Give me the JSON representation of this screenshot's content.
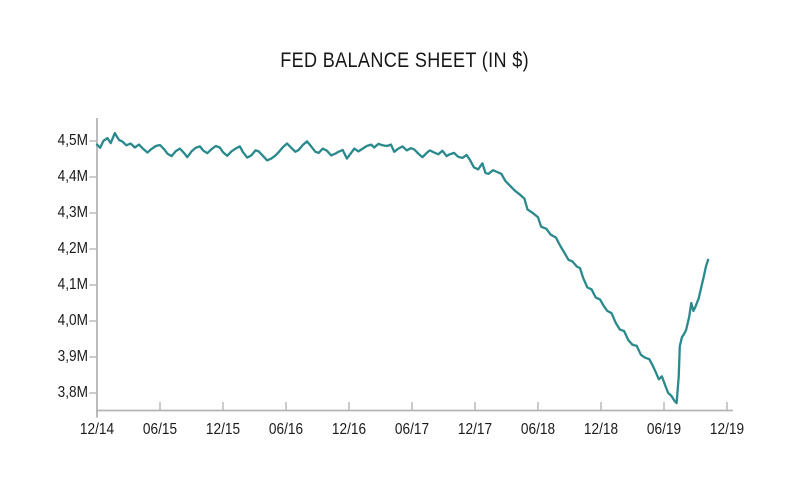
{
  "chart_data": {
    "type": "line",
    "title": "FED BALANCE SHEET (IN $)",
    "xlabel": "",
    "ylabel": "",
    "grid": false,
    "legend": false,
    "axis_color": "#b5b5b5",
    "text_color": "#1a1a1a",
    "xlim_months": [
      0,
      60.6
    ],
    "ylim": [
      3.75,
      4.56
    ],
    "x_ticks": [
      {
        "m": 0,
        "label": "12/14"
      },
      {
        "m": 6,
        "label": "06/15"
      },
      {
        "m": 12,
        "label": "12/15"
      },
      {
        "m": 18,
        "label": "06/16"
      },
      {
        "m": 24,
        "label": "12/16"
      },
      {
        "m": 30,
        "label": "06/17"
      },
      {
        "m": 36,
        "label": "12/17"
      },
      {
        "m": 42,
        "label": "06/18"
      },
      {
        "m": 48,
        "label": "12/18"
      },
      {
        "m": 54,
        "label": "06/19"
      },
      {
        "m": 60,
        "label": "12/19"
      }
    ],
    "y_ticks": [
      {
        "v": 4.5,
        "label": "4,5M"
      },
      {
        "v": 4.4,
        "label": "4,4M"
      },
      {
        "v": 4.3,
        "label": "4,3M"
      },
      {
        "v": 4.2,
        "label": "4,2M"
      },
      {
        "v": 4.1,
        "label": "4,1M"
      },
      {
        "v": 4.0,
        "label": "4,0M"
      },
      {
        "v": 3.9,
        "label": "3,9M"
      },
      {
        "v": 3.8,
        "label": "3,8M"
      }
    ],
    "series": [
      {
        "name": "Fed balance sheet",
        "color": "#2a898c",
        "points": [
          [
            0,
            4.49
          ],
          [
            0.3,
            4.481
          ],
          [
            0.6,
            4.5
          ],
          [
            1.0,
            4.508
          ],
          [
            1.3,
            4.494
          ],
          [
            1.7,
            4.522
          ],
          [
            2.1,
            4.503
          ],
          [
            2.4,
            4.499
          ],
          [
            2.8,
            4.488
          ],
          [
            3.2,
            4.493
          ],
          [
            3.6,
            4.482
          ],
          [
            4.0,
            4.49
          ],
          [
            4.4,
            4.478
          ],
          [
            4.8,
            4.468
          ],
          [
            5.2,
            4.478
          ],
          [
            5.6,
            4.486
          ],
          [
            6.0,
            4.489
          ],
          [
            6.4,
            4.477
          ],
          [
            6.7,
            4.465
          ],
          [
            7.1,
            4.458
          ],
          [
            7.5,
            4.472
          ],
          [
            7.9,
            4.479
          ],
          [
            8.3,
            4.466
          ],
          [
            8.6,
            4.455
          ],
          [
            9.0,
            4.471
          ],
          [
            9.4,
            4.481
          ],
          [
            9.8,
            4.485
          ],
          [
            10.1,
            4.474
          ],
          [
            10.5,
            4.466
          ],
          [
            10.9,
            4.477
          ],
          [
            11.3,
            4.486
          ],
          [
            11.7,
            4.482
          ],
          [
            12.0,
            4.469
          ],
          [
            12.4,
            4.459
          ],
          [
            12.8,
            4.471
          ],
          [
            13.2,
            4.479
          ],
          [
            13.6,
            4.485
          ],
          [
            13.9,
            4.469
          ],
          [
            14.3,
            4.454
          ],
          [
            14.7,
            4.46
          ],
          [
            15.1,
            4.474
          ],
          [
            15.4,
            4.471
          ],
          [
            15.8,
            4.459
          ],
          [
            16.2,
            4.446
          ],
          [
            16.6,
            4.451
          ],
          [
            17.0,
            4.46
          ],
          [
            17.3,
            4.469
          ],
          [
            17.7,
            4.483
          ],
          [
            18.1,
            4.493
          ],
          [
            18.5,
            4.481
          ],
          [
            18.9,
            4.47
          ],
          [
            19.2,
            4.475
          ],
          [
            19.6,
            4.489
          ],
          [
            20.0,
            4.499
          ],
          [
            20.4,
            4.485
          ],
          [
            20.8,
            4.47
          ],
          [
            21.1,
            4.467
          ],
          [
            21.5,
            4.479
          ],
          [
            21.9,
            4.473
          ],
          [
            22.3,
            4.46
          ],
          [
            22.7,
            4.465
          ],
          [
            23.0,
            4.47
          ],
          [
            23.4,
            4.475
          ],
          [
            23.8,
            4.451
          ],
          [
            24.2,
            4.467
          ],
          [
            24.5,
            4.479
          ],
          [
            24.9,
            4.471
          ],
          [
            25.3,
            4.479
          ],
          [
            25.7,
            4.486
          ],
          [
            26.1,
            4.49
          ],
          [
            26.4,
            4.482
          ],
          [
            26.8,
            4.492
          ],
          [
            27.2,
            4.488
          ],
          [
            27.6,
            4.486
          ],
          [
            28.0,
            4.49
          ],
          [
            28.3,
            4.47
          ],
          [
            28.7,
            4.479
          ],
          [
            29.1,
            4.485
          ],
          [
            29.5,
            4.474
          ],
          [
            29.9,
            4.48
          ],
          [
            30.2,
            4.477
          ],
          [
            30.6,
            4.465
          ],
          [
            31.0,
            4.455
          ],
          [
            31.4,
            4.467
          ],
          [
            31.7,
            4.474
          ],
          [
            32.1,
            4.468
          ],
          [
            32.5,
            4.463
          ],
          [
            32.9,
            4.473
          ],
          [
            33.3,
            4.458
          ],
          [
            33.6,
            4.463
          ],
          [
            34.0,
            4.467
          ],
          [
            34.4,
            4.456
          ],
          [
            34.8,
            4.453
          ],
          [
            35.2,
            4.461
          ],
          [
            35.5,
            4.448
          ],
          [
            35.9,
            4.427
          ],
          [
            36.3,
            4.421
          ],
          [
            36.7,
            4.438
          ],
          [
            37.0,
            4.411
          ],
          [
            37.3,
            4.409
          ],
          [
            37.7,
            4.419
          ],
          [
            38.1,
            4.414
          ],
          [
            38.5,
            4.409
          ],
          [
            38.9,
            4.389
          ],
          [
            39.3,
            4.377
          ],
          [
            39.8,
            4.362
          ],
          [
            40.2,
            4.353
          ],
          [
            40.7,
            4.34
          ],
          [
            41.0,
            4.31
          ],
          [
            41.5,
            4.3
          ],
          [
            42.0,
            4.288
          ],
          [
            42.3,
            4.262
          ],
          [
            42.8,
            4.256
          ],
          [
            43.2,
            4.24
          ],
          [
            43.7,
            4.232
          ],
          [
            44.1,
            4.21
          ],
          [
            44.5,
            4.19
          ],
          [
            44.9,
            4.17
          ],
          [
            45.3,
            4.165
          ],
          [
            45.7,
            4.151
          ],
          [
            46.0,
            4.147
          ],
          [
            46.3,
            4.12
          ],
          [
            46.7,
            4.093
          ],
          [
            47.1,
            4.088
          ],
          [
            47.5,
            4.065
          ],
          [
            47.9,
            4.06
          ],
          [
            48.3,
            4.04
          ],
          [
            48.6,
            4.028
          ],
          [
            49.0,
            4.022
          ],
          [
            49.4,
            3.995
          ],
          [
            49.8,
            3.976
          ],
          [
            50.2,
            3.972
          ],
          [
            50.6,
            3.947
          ],
          [
            51.0,
            3.934
          ],
          [
            51.4,
            3.931
          ],
          [
            51.8,
            3.906
          ],
          [
            52.2,
            3.898
          ],
          [
            52.6,
            3.894
          ],
          [
            52.9,
            3.878
          ],
          [
            53.2,
            3.859
          ],
          [
            53.5,
            3.838
          ],
          [
            53.8,
            3.846
          ],
          [
            54.1,
            3.822
          ],
          [
            54.4,
            3.8
          ],
          [
            54.7,
            3.792
          ],
          [
            55.0,
            3.778
          ],
          [
            55.2,
            3.772
          ],
          [
            55.4,
            3.845
          ],
          [
            55.5,
            3.93
          ],
          [
            55.7,
            3.955
          ],
          [
            55.9,
            3.963
          ],
          [
            56.1,
            3.975
          ],
          [
            56.4,
            4.012
          ],
          [
            56.6,
            4.05
          ],
          [
            56.8,
            4.028
          ],
          [
            57.0,
            4.04
          ],
          [
            57.3,
            4.062
          ],
          [
            57.5,
            4.088
          ],
          [
            57.8,
            4.125
          ],
          [
            58.0,
            4.152
          ],
          [
            58.2,
            4.17
          ]
        ]
      }
    ]
  }
}
